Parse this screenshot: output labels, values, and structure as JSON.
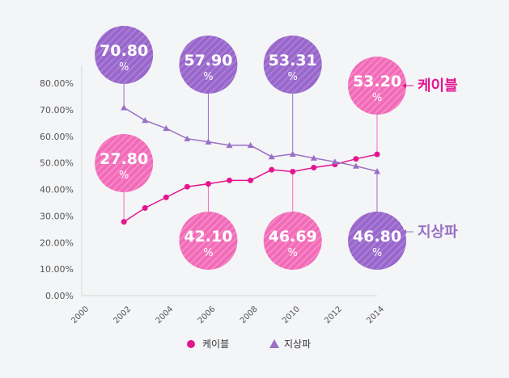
{
  "chart_data": {
    "type": "line",
    "x": [
      2002,
      2003,
      2004,
      2005,
      2006,
      2007,
      2008,
      2009,
      2010,
      2011,
      2012,
      2013,
      2014
    ],
    "xlim": [
      2000,
      2014
    ],
    "x_ticks": [
      "2000",
      "2002",
      "2004",
      "2006",
      "2008",
      "2010",
      "2012",
      "2014"
    ],
    "ylim": [
      0,
      80
    ],
    "y_ticks": [
      "0.00%",
      "10.00%",
      "20.00%",
      "30.00%",
      "40.00%",
      "50.00%",
      "60.00%",
      "70.00%",
      "80.00%"
    ],
    "grid": false,
    "legend_position": "bottom-center",
    "series": [
      {
        "name": "케이블",
        "marker": "circle",
        "color": "#e4158f",
        "bubble_color": "#f26ab8",
        "values": [
          27.8,
          33.0,
          37.0,
          41.0,
          42.1,
          43.4,
          43.4,
          47.4,
          46.69,
          48.2,
          49.4,
          51.5,
          53.2
        ]
      },
      {
        "name": "지상파",
        "marker": "triangle",
        "color": "#9a6fc4",
        "bubble_color": "#9966cc",
        "values": [
          70.8,
          66.0,
          63.0,
          59.1,
          57.9,
          56.6,
          56.6,
          52.3,
          53.31,
          51.8,
          50.4,
          48.8,
          46.8
        ]
      }
    ],
    "annotations": [
      {
        "series": 1,
        "x": 2002,
        "text": "70.80",
        "unit": "%",
        "side": "above"
      },
      {
        "series": 1,
        "x": 2006,
        "text": "57.90",
        "unit": "%",
        "side": "above"
      },
      {
        "series": 1,
        "x": 2010,
        "text": "53.31",
        "unit": "%",
        "side": "above"
      },
      {
        "series": 0,
        "x": 2014,
        "text": "53.20",
        "unit": "%",
        "side": "above"
      },
      {
        "series": 0,
        "x": 2002,
        "text": "27.80",
        "unit": "%",
        "side": "above"
      },
      {
        "series": 0,
        "x": 2006,
        "text": "42.10",
        "unit": "%",
        "side": "below"
      },
      {
        "series": 0,
        "x": 2010,
        "text": "46.69",
        "unit": "%",
        "side": "below"
      },
      {
        "series": 1,
        "x": 2014,
        "text": "46.80",
        "unit": "%",
        "side": "below"
      }
    ]
  }
}
